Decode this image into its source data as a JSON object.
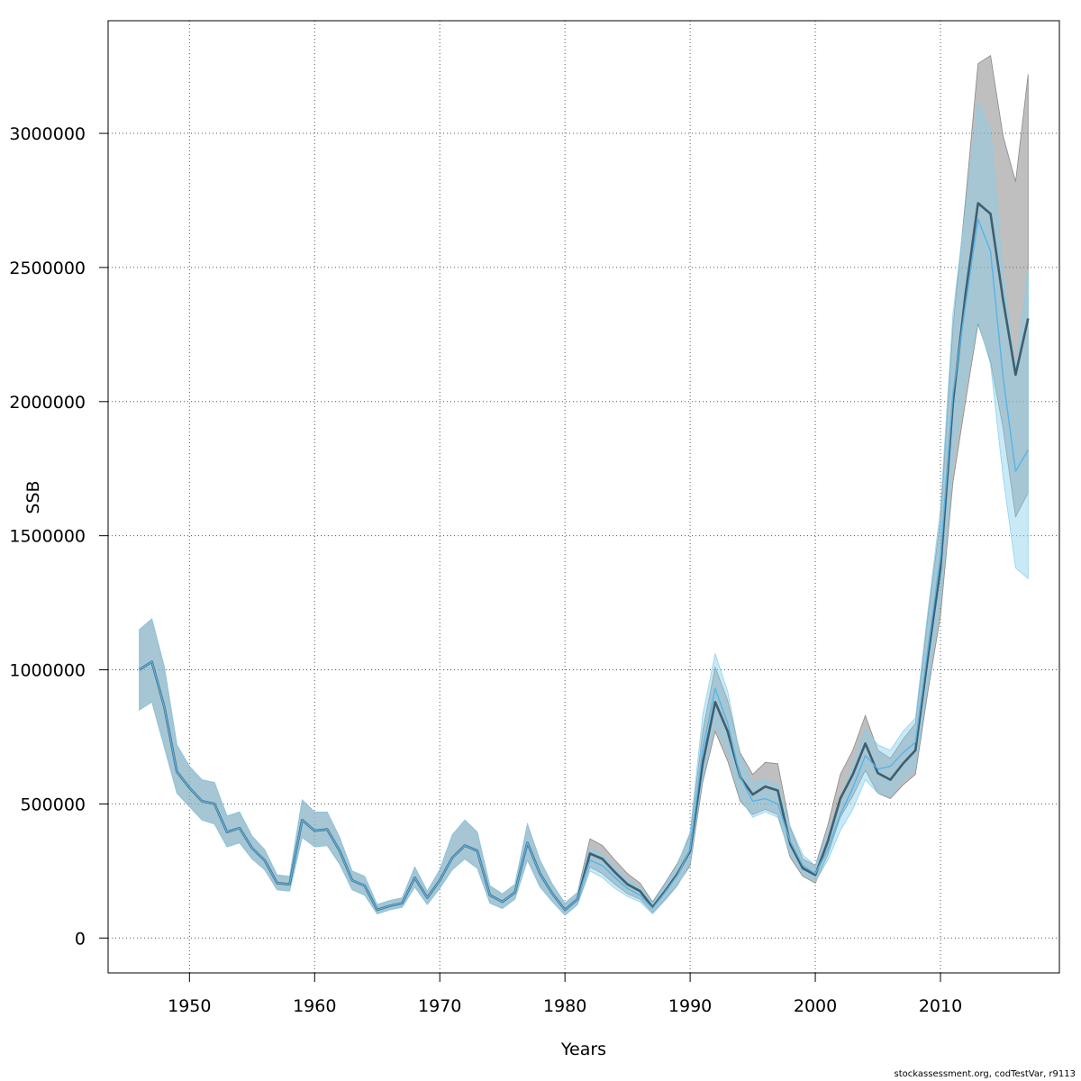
{
  "chart_data": {
    "type": "line",
    "xlabel": "Years",
    "ylabel": "SSB",
    "xlim": [
      1943.5,
      2019.5
    ],
    "ylim": [
      -130000,
      3420000
    ],
    "x_ticks": [
      1950,
      1960,
      1970,
      1980,
      1990,
      2000,
      2010
    ],
    "y_ticks": [
      0,
      500000,
      1000000,
      1500000,
      2000000,
      2500000,
      3000000
    ],
    "grid": true,
    "series": [
      {
        "color": "#000000",
        "band_color": "#7f7f7f",
        "x": [
          1946,
          1947,
          1948,
          1949,
          1950,
          1951,
          1952,
          1953,
          1954,
          1955,
          1956,
          1957,
          1958,
          1959,
          1960,
          1961,
          1962,
          1963,
          1964,
          1965,
          1966,
          1967,
          1968,
          1969,
          1970,
          1971,
          1972,
          1973,
          1974,
          1975,
          1976,
          1977,
          1978,
          1979,
          1980,
          1981,
          1982,
          1983,
          1984,
          1985,
          1986,
          1987,
          1988,
          1989,
          1990,
          1991,
          1992,
          1993,
          1994,
          1995,
          1996,
          1997,
          1998,
          1999,
          2000,
          2001,
          2002,
          2003,
          2004,
          2005,
          2006,
          2007,
          2008,
          2009,
          2010,
          2011,
          2012,
          2013,
          2014,
          2015,
          2016,
          2017
        ],
        "y": [
          1000000,
          1030000,
          860000,
          620000,
          560000,
          510000,
          500000,
          395000,
          410000,
          335000,
          290000,
          205000,
          200000,
          440000,
          400000,
          405000,
          325000,
          215000,
          195000,
          105000,
          120000,
          130000,
          225000,
          150000,
          215000,
          300000,
          345000,
          325000,
          160000,
          135000,
          170000,
          355000,
          240000,
          165000,
          105000,
          145000,
          315000,
          295000,
          245000,
          200000,
          175000,
          115000,
          175000,
          240000,
          325000,
          650000,
          880000,
          770000,
          600000,
          535000,
          565000,
          550000,
          350000,
          260000,
          235000,
          360000,
          520000,
          610000,
          725000,
          615000,
          590000,
          650000,
          700000,
          1050000,
          1380000,
          2000000,
          2400000,
          2740000,
          2700000,
          2380000,
          2100000,
          2310000
        ],
        "lower": [
          850000,
          880000,
          710000,
          540000,
          490000,
          440000,
          425000,
          340000,
          355000,
          295000,
          255000,
          180000,
          175000,
          375000,
          340000,
          345000,
          275000,
          180000,
          160000,
          90000,
          105000,
          115000,
          190000,
          125000,
          185000,
          255000,
          295000,
          260000,
          130000,
          110000,
          145000,
          290000,
          190000,
          135000,
          85000,
          125000,
          265000,
          240000,
          200000,
          165000,
          145000,
          95000,
          145000,
          200000,
          270000,
          580000,
          770000,
          660000,
          510000,
          460000,
          480000,
          460000,
          300000,
          230000,
          205000,
          310000,
          450000,
          530000,
          625000,
          540000,
          520000,
          570000,
          610000,
          920000,
          1200000,
          1700000,
          2000000,
          2290000,
          2150000,
          1900000,
          1570000,
          1660000
        ],
        "upper": [
          1150000,
          1190000,
          1010000,
          720000,
          640000,
          590000,
          580000,
          455000,
          470000,
          380000,
          330000,
          235000,
          230000,
          515000,
          470000,
          470000,
          375000,
          250000,
          230000,
          125000,
          140000,
          150000,
          265000,
          175000,
          255000,
          385000,
          440000,
          395000,
          195000,
          165000,
          200000,
          425000,
          290000,
          200000,
          130000,
          170000,
          370000,
          345000,
          290000,
          240000,
          205000,
          135000,
          205000,
          280000,
          385000,
          770000,
          1010000,
          885000,
          690000,
          610000,
          655000,
          650000,
          410000,
          295000,
          270000,
          420000,
          610000,
          700000,
          830000,
          700000,
          670000,
          740000,
          800000,
          1200000,
          1560000,
          2280000,
          2750000,
          3260000,
          3290000,
          2990000,
          2820000,
          3220000
        ]
      },
      {
        "color": "#56b4e9",
        "band_color": "#87ceeb",
        "x": [
          1946,
          1947,
          1948,
          1949,
          1950,
          1951,
          1952,
          1953,
          1954,
          1955,
          1956,
          1957,
          1958,
          1959,
          1960,
          1961,
          1962,
          1963,
          1964,
          1965,
          1966,
          1967,
          1968,
          1969,
          1970,
          1971,
          1972,
          1973,
          1974,
          1975,
          1976,
          1977,
          1978,
          1979,
          1980,
          1981,
          1982,
          1983,
          1984,
          1985,
          1986,
          1987,
          1988,
          1989,
          1990,
          1991,
          1992,
          1993,
          1994,
          1995,
          1996,
          1997,
          1998,
          1999,
          2000,
          2001,
          2002,
          2003,
          2004,
          2005,
          2006,
          2007,
          2008,
          2009,
          2010,
          2011,
          2012,
          2013,
          2014,
          2015,
          2016,
          2017
        ],
        "y": [
          1000000,
          1030000,
          860000,
          620000,
          560000,
          510000,
          500000,
          395000,
          410000,
          335000,
          290000,
          205000,
          200000,
          440000,
          400000,
          405000,
          325000,
          215000,
          195000,
          105000,
          120000,
          130000,
          225000,
          150000,
          215000,
          300000,
          345000,
          325000,
          160000,
          135000,
          170000,
          355000,
          240000,
          165000,
          105000,
          145000,
          290000,
          270000,
          225000,
          185000,
          160000,
          110000,
          170000,
          235000,
          330000,
          700000,
          930000,
          800000,
          600000,
          510000,
          520000,
          500000,
          360000,
          270000,
          240000,
          330000,
          460000,
          560000,
          680000,
          630000,
          640000,
          690000,
          730000,
          1080000,
          1420000,
          2030000,
          2360000,
          2680000,
          2560000,
          2090000,
          1740000,
          1820000
        ],
        "lower": [
          850000,
          880000,
          710000,
          540000,
          490000,
          440000,
          425000,
          340000,
          355000,
          295000,
          255000,
          180000,
          175000,
          375000,
          340000,
          345000,
          275000,
          180000,
          160000,
          90000,
          105000,
          115000,
          190000,
          125000,
          185000,
          255000,
          295000,
          260000,
          130000,
          110000,
          145000,
          290000,
          190000,
          135000,
          85000,
          125000,
          250000,
          225000,
          185000,
          155000,
          135000,
          90000,
          140000,
          195000,
          280000,
          600000,
          800000,
          690000,
          520000,
          450000,
          470000,
          450000,
          310000,
          240000,
          210000,
          290000,
          400000,
          480000,
          590000,
          540000,
          530000,
          590000,
          630000,
          950000,
          1250000,
          1780000,
          2060000,
          2300000,
          2140000,
          1720000,
          1380000,
          1340000
        ],
        "upper": [
          1150000,
          1190000,
          1010000,
          720000,
          640000,
          590000,
          580000,
          455000,
          470000,
          380000,
          330000,
          235000,
          230000,
          515000,
          470000,
          470000,
          375000,
          250000,
          230000,
          125000,
          140000,
          150000,
          265000,
          175000,
          255000,
          385000,
          440000,
          395000,
          195000,
          165000,
          200000,
          425000,
          290000,
          200000,
          130000,
          170000,
          335000,
          315000,
          265000,
          220000,
          190000,
          130000,
          200000,
          275000,
          395000,
          830000,
          1060000,
          920000,
          680000,
          580000,
          590000,
          570000,
          415000,
          310000,
          270000,
          390000,
          520000,
          640000,
          780000,
          720000,
          700000,
          770000,
          820000,
          1220000,
          1600000,
          2330000,
          2720000,
          3120000,
          3010000,
          2480000,
          2120000,
          2490000
        ]
      }
    ]
  },
  "footer": {
    "text": "stockassessment.org, codTestVar, r9113"
  }
}
